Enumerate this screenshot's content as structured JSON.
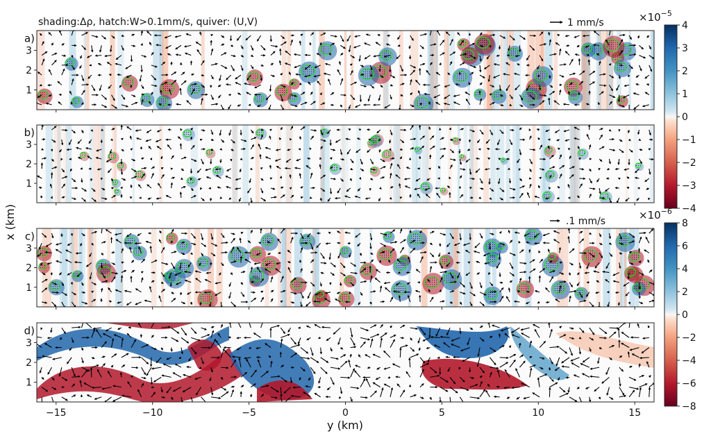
{
  "header": {
    "annotation": "shading:Δρ, hatch:W>0.1mm/s, quiver: (U,V)"
  },
  "chart_data": {
    "type": "heatmap",
    "description_fields": "four stacked panels sharing y axis; shading is density anomaly, green hatched contours W>0.1mm/s, arrows are (U,V) quiver",
    "xlabel": "y (km)",
    "ylabel": "x (km)",
    "xlim": [
      -16,
      16
    ],
    "ylim": [
      0,
      4
    ],
    "x_ticks": [
      -15,
      -10,
      -5,
      0,
      5,
      10,
      15
    ],
    "y_ticks": [
      1,
      2,
      3
    ],
    "colormap": "RdBu",
    "panels": [
      {
        "label": "a)",
        "color_group": 0
      },
      {
        "label": "b)",
        "color_group": 0
      },
      {
        "label": "c)",
        "color_group": 1
      },
      {
        "label": "d)",
        "color_group": 1
      }
    ],
    "colorbars": [
      {
        "exponent_label": "×10",
        "exponent": "−5",
        "range": [
          -4,
          4
        ],
        "ticks": [
          4,
          3,
          2,
          1,
          0,
          -1,
          -2,
          -3,
          -4
        ],
        "tick_labels": [
          "4",
          "3",
          "2",
          "1",
          "0",
          "−1",
          "−2",
          "−3",
          "−4"
        ]
      },
      {
        "exponent_label": "×10",
        "exponent": "−6",
        "range": [
          -8,
          8
        ],
        "ticks": [
          8,
          6,
          4,
          2,
          0,
          -2,
          -4,
          -6,
          -8
        ],
        "tick_labels": [
          "8",
          "6",
          "4",
          "2",
          "0",
          "−2",
          "−4",
          "−6",
          "−8"
        ]
      }
    ],
    "quiver_keys": [
      {
        "label": "1 mm/s",
        "value_mm_s": 1
      },
      {
        "label": ".1 mm/s",
        "value_mm_s": 0.1
      }
    ],
    "colors": {
      "pos_extreme": "#053061",
      "pos_mid": "#4393c3",
      "neutral": "#f7f7f7",
      "neg_mid": "#d6604d",
      "neg_extreme": "#67001f",
      "hatch": "#22dd22",
      "arrow": "#000000"
    }
  }
}
